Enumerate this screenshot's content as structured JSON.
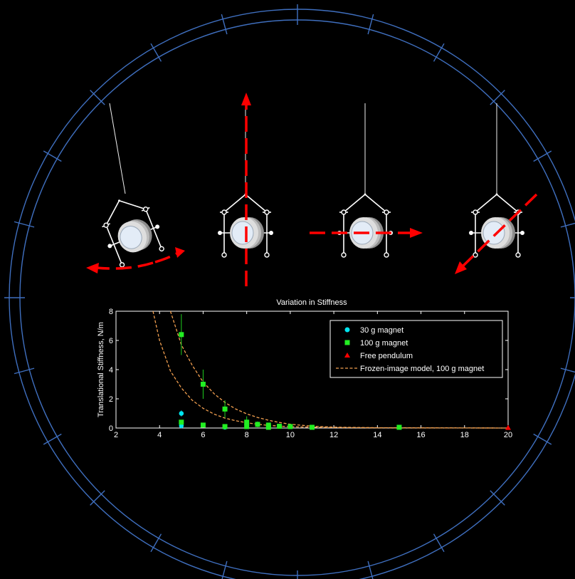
{
  "colors": {
    "ring": "#3f6fbf",
    "arrow": "#ff0000",
    "magnet_30g": "#00e5ef",
    "magnet_100g": "#22ee22",
    "free_pendulum": "#ff0000",
    "model": "#f29f4f"
  },
  "diagram": {
    "panels": [
      {
        "mode": "rotation"
      },
      {
        "mode": "vertical translation"
      },
      {
        "mode": "horizontal translation"
      },
      {
        "mode": "diagonal translation"
      }
    ]
  },
  "chart_data": {
    "type": "scatter",
    "title": "Variation in Stiffness",
    "xlabel": "",
    "ylabel": "Translational Stiffness, N/m",
    "xlim": [
      2,
      20
    ],
    "ylim": [
      0,
      8
    ],
    "xticks": [
      "2",
      "4",
      "6",
      "8",
      "10",
      "12",
      "14",
      "16",
      "18",
      "20"
    ],
    "yticks": [
      "0",
      "2",
      "4",
      "6",
      "8"
    ],
    "grid": false,
    "legend_position": "top-right",
    "series": [
      {
        "name": "30 g magnet",
        "marker": "circle",
        "color": "#00e5ef",
        "points": [
          {
            "x": 5,
            "y": 1.0,
            "err": 0.2
          },
          {
            "x": 5,
            "y": 0.15,
            "err": 0.05
          },
          {
            "x": 7,
            "y": 0.05,
            "err": 0.03
          }
        ]
      },
      {
        "name": "100 g magnet",
        "marker": "square",
        "color": "#22ee22",
        "points": [
          {
            "x": 5,
            "y": 6.4,
            "err": 1.4
          },
          {
            "x": 5,
            "y": 0.4,
            "err": 0.15
          },
          {
            "x": 6,
            "y": 3.0,
            "err": 1.0
          },
          {
            "x": 6,
            "y": 0.2,
            "err": 0.1
          },
          {
            "x": 7,
            "y": 1.3,
            "err": 0.6
          },
          {
            "x": 7,
            "y": 0.1,
            "err": 0.05
          },
          {
            "x": 8,
            "y": 0.4,
            "err": 0.4
          },
          {
            "x": 8,
            "y": 0.1,
            "err": 0.05
          },
          {
            "x": 8.5,
            "y": 0.25,
            "err": 0.2
          },
          {
            "x": 9,
            "y": 0.2,
            "err": 0.15
          },
          {
            "x": 9,
            "y": 0.05,
            "err": 0.03
          },
          {
            "x": 9.5,
            "y": 0.12,
            "err": 0.1
          },
          {
            "x": 10,
            "y": 0.1,
            "err": 0.1
          },
          {
            "x": 11,
            "y": 0.05,
            "err": 0.05
          },
          {
            "x": 15,
            "y": 0.05,
            "err": 0.05
          }
        ]
      },
      {
        "name": "Free pendulum",
        "marker": "triangle",
        "color": "#ff0000",
        "points": [
          {
            "x": 20,
            "y": 0.02,
            "err": 0
          }
        ]
      },
      {
        "name": "Frozen-image model, 100 g magnet",
        "marker": "dashed-line",
        "color": "#f29f4f",
        "curves": [
          [
            [
              3.7,
              8.0
            ],
            [
              4.0,
              6.0
            ],
            [
              4.5,
              3.9
            ],
            [
              5.0,
              2.75
            ],
            [
              5.5,
              1.9
            ],
            [
              6.0,
              1.35
            ],
            [
              6.5,
              0.95
            ],
            [
              7.0,
              0.68
            ],
            [
              7.5,
              0.5
            ],
            [
              8.0,
              0.36
            ],
            [
              8.5,
              0.26
            ],
            [
              9.0,
              0.18
            ],
            [
              10.0,
              0.09
            ],
            [
              12.0,
              0.03
            ],
            [
              16.0,
              0.01
            ],
            [
              20.0,
              0.0
            ]
          ],
          [
            [
              4.5,
              8.0
            ],
            [
              5.0,
              5.7
            ],
            [
              5.5,
              4.3
            ],
            [
              6.0,
              3.15
            ],
            [
              6.5,
              2.35
            ],
            [
              7.0,
              1.75
            ],
            [
              7.5,
              1.3
            ],
            [
              8.0,
              0.97
            ],
            [
              8.5,
              0.72
            ],
            [
              9.0,
              0.53
            ],
            [
              9.5,
              0.38
            ],
            [
              10.0,
              0.26
            ],
            [
              11.0,
              0.12
            ],
            [
              12.0,
              0.06
            ],
            [
              14.0,
              0.02
            ],
            [
              20.0,
              0.0
            ]
          ]
        ]
      }
    ]
  }
}
